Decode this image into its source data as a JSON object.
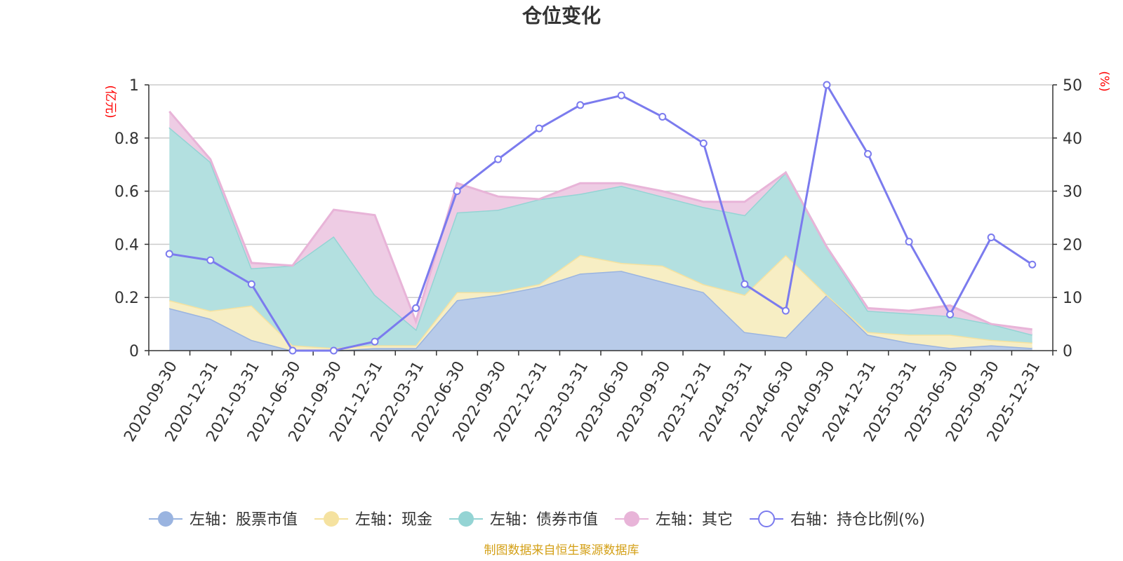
{
  "chart_data": {
    "type": "area",
    "title": "仓位变化",
    "left_axis_unit": "(亿元)",
    "right_axis_unit": "(%)",
    "left_ylim": [
      0,
      1
    ],
    "left_ticks": [
      "0",
      "0.2",
      "0.4",
      "0.6",
      "0.8",
      "1"
    ],
    "right_ylim": [
      0,
      50
    ],
    "right_ticks": [
      "0",
      "10",
      "20",
      "30",
      "40",
      "50"
    ],
    "categories": [
      "2020-09-30",
      "2020-12-31",
      "2021-03-31",
      "2021-06-30",
      "2021-09-30",
      "2021-12-31",
      "2022-03-31",
      "2022-06-30",
      "2022-09-30",
      "2022-12-31",
      "2023-03-31",
      "2023-06-30",
      "2023-09-30",
      "2023-12-31",
      "2024-03-31",
      "2024-06-30",
      "2024-09-30",
      "2024-12-31",
      "2025-03-31",
      "2025-06-30",
      "2025-09-30",
      "2025-12-31"
    ],
    "stacked_series": [
      {
        "name": "左轴：股票市值",
        "fill": "#b8cbe9",
        "line": "#9ab4e0",
        "values": [
          0.16,
          0.12,
          0.04,
          0.0,
          0.0,
          0.01,
          0.01,
          0.19,
          0.21,
          0.24,
          0.29,
          0.3,
          0.26,
          0.22,
          0.07,
          0.05,
          0.21,
          0.06,
          0.03,
          0.01,
          0.02,
          0.01
        ]
      },
      {
        "name": "左轴：现金",
        "fill": "#f7eec4",
        "line": "#f5e2a0",
        "values": [
          0.03,
          0.03,
          0.13,
          0.02,
          0.01,
          0.01,
          0.01,
          0.03,
          0.01,
          0.01,
          0.07,
          0.03,
          0.06,
          0.03,
          0.14,
          0.31,
          0.0,
          0.01,
          0.03,
          0.05,
          0.02,
          0.02
        ]
      },
      {
        "name": "左轴：债券市值",
        "fill": "#b3e0e0",
        "line": "#94d4d4",
        "values": [
          0.65,
          0.56,
          0.14,
          0.3,
          0.42,
          0.19,
          0.06,
          0.3,
          0.31,
          0.32,
          0.23,
          0.29,
          0.26,
          0.29,
          0.3,
          0.31,
          0.18,
          0.08,
          0.08,
          0.07,
          0.06,
          0.03
        ]
      },
      {
        "name": "左轴：其它",
        "fill": "#eecce4",
        "line": "#e8b4d8",
        "values": [
          0.06,
          0.01,
          0.02,
          0.0,
          0.1,
          0.3,
          0.03,
          0.11,
          0.05,
          0.0,
          0.04,
          0.01,
          0.02,
          0.02,
          0.05,
          0.0,
          0.0,
          0.01,
          0.01,
          0.04,
          0.0,
          0.02
        ]
      }
    ],
    "line_series": {
      "name": "右轴：持仓比例(%)",
      "color": "#7b7bee",
      "axis": "right",
      "values": [
        18.2,
        17.0,
        12.5,
        0.0,
        0.0,
        1.7,
        8.0,
        30.0,
        36.0,
        41.8,
        46.2,
        48.0,
        44.0,
        39.0,
        12.5,
        7.5,
        50.0,
        37.0,
        20.5,
        6.8,
        21.3,
        16.2
      ]
    }
  },
  "source_text": "制图数据来自恒生聚源数据库"
}
